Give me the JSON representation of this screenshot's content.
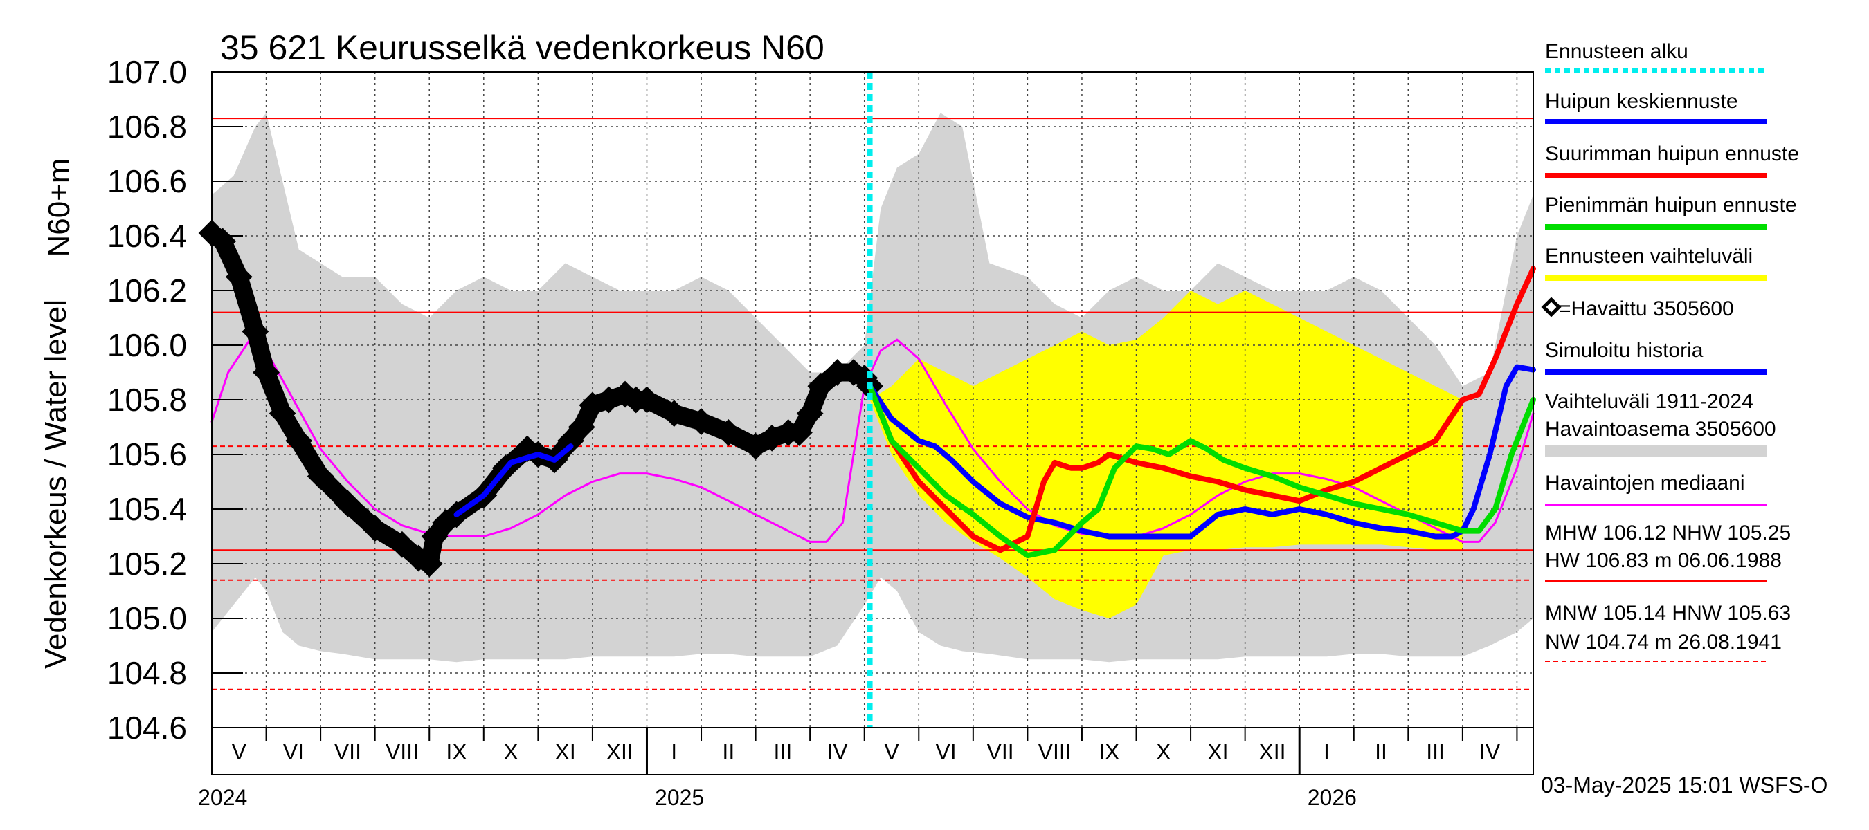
{
  "chart_data": {
    "type": "line",
    "title": "35 621 Keurusselkä vedenkorkeus N60",
    "ylabel_top": "N60+m",
    "ylabel_main": "Vedenkorkeus / Water level",
    "ylim": [
      104.6,
      107.0
    ],
    "y_ticks": [
      "107.0",
      "106.8",
      "106.6",
      "106.4",
      "106.2",
      "106.0",
      "105.8",
      "105.6",
      "105.4",
      "105.2",
      "105.0",
      "104.8",
      "104.6"
    ],
    "x_range_months": [
      0,
      24.3
    ],
    "months": [
      "V",
      "VI",
      "VII",
      "VIII",
      "IX",
      "X",
      "XI",
      "XII",
      "I",
      "II",
      "III",
      "IV",
      "V",
      "VI",
      "VII",
      "VIII",
      "IX",
      "X",
      "XI",
      "XII",
      "I",
      "II",
      "III",
      "IV"
    ],
    "years": [
      "2024",
      "2025",
      "2026"
    ],
    "forecast_start": 12.1,
    "reference_lines": [
      {
        "name": "HW",
        "value": 106.83,
        "style": "solid"
      },
      {
        "name": "MHW",
        "value": 106.12,
        "style": "solid"
      },
      {
        "name": "HNW",
        "value": 105.63,
        "style": "dashed"
      },
      {
        "name": "NHW",
        "value": 105.25,
        "style": "solid"
      },
      {
        "name": "MNW",
        "value": 105.14,
        "style": "dashed"
      },
      {
        "name": "NW",
        "value": 104.74,
        "style": "dashed"
      }
    ],
    "series": [
      {
        "name": "Vaihteluväli 1911-2024 Havaintoasema 3505600",
        "kind": "band",
        "color": "#d3d3d3",
        "x": [
          0,
          0.4,
          0.8,
          1.0,
          1.3,
          1.6,
          2.0,
          2.4,
          3.0,
          3.5,
          4.0,
          4.5,
          5.0,
          5.5,
          6.0,
          6.5,
          7.0,
          7.5,
          8.0,
          8.5,
          9.0,
          9.5,
          10.0,
          10.5,
          11.0,
          11.5,
          12.0,
          12.3,
          12.6,
          13.0,
          13.4,
          13.8,
          14.3,
          15.0,
          15.5,
          16.0,
          16.5,
          17.0,
          17.5,
          18.0,
          18.5,
          19.0,
          19.5,
          20.0,
          20.5,
          21.0,
          21.5,
          22.0,
          22.5,
          23.0,
          23.5,
          24.0,
          24.3
        ],
        "upper": [
          106.55,
          106.62,
          106.8,
          106.85,
          106.6,
          106.35,
          106.3,
          106.25,
          106.25,
          106.15,
          106.1,
          106.2,
          106.25,
          106.2,
          106.2,
          106.3,
          106.25,
          106.2,
          106.2,
          106.2,
          106.25,
          106.2,
          106.1,
          106.0,
          105.9,
          105.9,
          106.0,
          106.5,
          106.65,
          106.7,
          106.85,
          106.8,
          106.3,
          106.25,
          106.15,
          106.1,
          106.2,
          106.25,
          106.2,
          106.2,
          106.3,
          106.25,
          106.2,
          106.2,
          106.2,
          106.25,
          106.2,
          106.1,
          106.0,
          105.85,
          105.9,
          106.4,
          106.55
        ],
        "lower": [
          104.95,
          105.05,
          105.15,
          105.1,
          104.95,
          104.9,
          104.88,
          104.87,
          104.85,
          104.85,
          104.85,
          104.84,
          104.85,
          104.85,
          104.85,
          104.85,
          104.86,
          104.86,
          104.86,
          104.86,
          104.87,
          104.87,
          104.86,
          104.86,
          104.86,
          104.9,
          105.05,
          105.15,
          105.1,
          104.95,
          104.9,
          104.88,
          104.87,
          104.85,
          104.85,
          104.85,
          104.84,
          104.85,
          104.85,
          104.85,
          104.85,
          104.86,
          104.86,
          104.86,
          104.86,
          104.87,
          104.87,
          104.86,
          104.86,
          104.86,
          104.9,
          104.95,
          105.0
        ]
      },
      {
        "name": "Ennusteen vaihteluväli",
        "kind": "band",
        "color": "#ffff00",
        "x": [
          12.1,
          12.5,
          13.0,
          13.5,
          14.0,
          14.5,
          15.0,
          15.5,
          16.0,
          16.5,
          17.0,
          17.5,
          18.0,
          18.5,
          19.0,
          19.5,
          20.0,
          20.5,
          21.0,
          21.5,
          22.0,
          22.5,
          23.0
        ],
        "upper": [
          105.8,
          105.85,
          105.95,
          105.9,
          105.85,
          105.9,
          105.95,
          106.0,
          106.05,
          106.0,
          106.02,
          106.1,
          106.2,
          106.15,
          106.2,
          106.15,
          106.1,
          106.05,
          106.0,
          105.95,
          105.9,
          105.85,
          105.8
        ],
        "lower": [
          105.8,
          105.6,
          105.45,
          105.35,
          105.28,
          105.22,
          105.15,
          105.07,
          105.03,
          105.0,
          105.05,
          105.23,
          105.25,
          105.25,
          105.26,
          105.26,
          105.27,
          105.27,
          105.27,
          105.27,
          105.26,
          105.25,
          105.25
        ]
      },
      {
        "name": "Havaintojen mediaani",
        "color": "#ff00ff",
        "x": [
          0,
          0.3,
          0.7,
          1.0,
          1.5,
          2.0,
          2.5,
          3.0,
          3.5,
          4.0,
          4.5,
          5.0,
          5.5,
          6.0,
          6.5,
          7.0,
          7.5,
          8.0,
          8.5,
          9.0,
          9.5,
          10.0,
          10.5,
          11.0,
          11.3,
          11.6,
          11.8,
          12.0,
          12.3,
          12.6,
          13.0,
          13.5,
          14.0,
          14.5,
          15.0,
          15.5,
          16.0,
          16.5,
          17.0,
          17.5,
          18.0,
          18.5,
          19.0,
          19.5,
          20.0,
          20.5,
          21.0,
          21.5,
          22.0,
          22.5,
          23.0,
          23.3,
          23.6,
          24.0,
          24.3
        ],
        "values": [
          105.72,
          105.9,
          106.02,
          105.98,
          105.8,
          105.62,
          105.5,
          105.4,
          105.34,
          105.31,
          105.3,
          105.3,
          105.33,
          105.38,
          105.45,
          105.5,
          105.53,
          105.53,
          105.51,
          105.48,
          105.43,
          105.38,
          105.33,
          105.28,
          105.28,
          105.35,
          105.6,
          105.85,
          105.98,
          106.02,
          105.95,
          105.78,
          105.62,
          105.5,
          105.4,
          105.34,
          105.31,
          105.3,
          105.3,
          105.33,
          105.38,
          105.45,
          105.5,
          105.53,
          105.53,
          105.51,
          105.48,
          105.43,
          105.38,
          105.33,
          105.28,
          105.28,
          105.35,
          105.55,
          105.75
        ]
      },
      {
        "name": "Havaittu 3505600",
        "color": "#000000",
        "kind": "markers",
        "x": [
          0,
          0.2,
          0.5,
          0.8,
          1.0,
          1.3,
          1.6,
          2.0,
          2.5,
          3.0,
          3.5,
          3.8,
          4.0,
          4.1,
          4.3,
          4.5,
          5.0,
          5.4,
          5.8,
          6.0,
          6.3,
          6.6,
          6.8,
          7.0,
          7.3,
          7.6,
          7.8,
          8.0,
          8.5,
          9.0,
          9.5,
          10.0,
          10.3,
          10.6,
          10.8,
          11.0,
          11.2,
          11.5,
          11.8,
          12.0,
          12.1
        ],
        "values": [
          106.41,
          106.38,
          106.25,
          106.05,
          105.9,
          105.75,
          105.65,
          105.52,
          105.42,
          105.33,
          105.27,
          105.22,
          105.2,
          105.3,
          105.35,
          105.38,
          105.45,
          105.55,
          105.62,
          105.6,
          105.58,
          105.65,
          105.7,
          105.78,
          105.8,
          105.82,
          105.8,
          105.8,
          105.75,
          105.72,
          105.68,
          105.63,
          105.66,
          105.68,
          105.68,
          105.75,
          105.85,
          105.9,
          105.9,
          105.88,
          105.85
        ]
      },
      {
        "name": "Simuloitu historia",
        "color": "#0000ff",
        "x": [
          4.5,
          5.0,
          5.5,
          6.0,
          6.3,
          6.6
        ],
        "values": [
          105.38,
          105.45,
          105.57,
          105.6,
          105.58,
          105.63
        ]
      },
      {
        "name": "Huipun keskiennuste",
        "color": "#0000ff",
        "x": [
          12.1,
          12.5,
          13.0,
          13.3,
          13.6,
          14.0,
          14.5,
          15.0,
          15.5,
          16.0,
          16.5,
          17.0,
          17.5,
          18.0,
          18.5,
          19.0,
          19.5,
          20.0,
          20.5,
          21.0,
          21.5,
          22.0,
          22.5,
          22.8,
          23.0,
          23.2,
          23.5,
          23.8,
          24.0,
          24.3
        ],
        "values": [
          105.85,
          105.73,
          105.65,
          105.63,
          105.58,
          105.5,
          105.42,
          105.37,
          105.35,
          105.32,
          105.3,
          105.3,
          105.3,
          105.3,
          105.38,
          105.4,
          105.38,
          105.4,
          105.38,
          105.35,
          105.33,
          105.32,
          105.3,
          105.3,
          105.32,
          105.4,
          105.6,
          105.85,
          105.92,
          105.91
        ]
      },
      {
        "name": "Suurimman huipun ennuste",
        "color": "#ff0000",
        "x": [
          12.1,
          12.5,
          13.0,
          13.5,
          14.0,
          14.5,
          15.0,
          15.3,
          15.5,
          15.8,
          16.0,
          16.3,
          16.5,
          17.0,
          17.5,
          18.0,
          18.5,
          19.0,
          19.5,
          20.0,
          20.5,
          21.0,
          21.5,
          22.0,
          22.5,
          23.0,
          23.3,
          23.6,
          23.9,
          24.0,
          24.3
        ],
        "values": [
          105.85,
          105.65,
          105.5,
          105.4,
          105.3,
          105.25,
          105.3,
          105.5,
          105.57,
          105.55,
          105.55,
          105.57,
          105.6,
          105.57,
          105.55,
          105.52,
          105.5,
          105.47,
          105.45,
          105.43,
          105.47,
          105.5,
          105.55,
          105.6,
          105.65,
          105.8,
          105.82,
          105.95,
          106.1,
          106.15,
          106.28
        ]
      },
      {
        "name": "Pienimmän huipun ennuste",
        "color": "#00dd00",
        "x": [
          12.1,
          12.5,
          13.0,
          13.5,
          14.0,
          14.5,
          15.0,
          15.5,
          16.0,
          16.3,
          16.6,
          17.0,
          17.3,
          17.6,
          18.0,
          18.3,
          18.6,
          19.0,
          19.5,
          20.0,
          20.5,
          21.0,
          21.5,
          22.0,
          22.5,
          23.0,
          23.3,
          23.6,
          23.9,
          24.3
        ],
        "values": [
          105.85,
          105.65,
          105.55,
          105.45,
          105.38,
          105.3,
          105.23,
          105.25,
          105.35,
          105.4,
          105.55,
          105.63,
          105.62,
          105.6,
          105.65,
          105.62,
          105.58,
          105.55,
          105.52,
          105.48,
          105.45,
          105.42,
          105.4,
          105.38,
          105.35,
          105.32,
          105.32,
          105.4,
          105.6,
          105.8
        ]
      }
    ],
    "legend": [
      {
        "label": "Ennusteen alku",
        "color": "#00eeee",
        "style": "dotted"
      },
      {
        "label": "Huipun keskiennuste",
        "color": "#0000ff",
        "style": "line"
      },
      {
        "label": "Suurimman huipun ennuste",
        "color": "#ff0000",
        "style": "line"
      },
      {
        "label": "Pienimmän huipun ennuste",
        "color": "#00dd00",
        "style": "line"
      },
      {
        "label": "Ennusteen vaihteluväli",
        "color": "#ffff00",
        "style": "line"
      },
      {
        "label": "=Havaittu 3505600",
        "color": "#000000",
        "style": "marker"
      },
      {
        "label": "Simuloitu historia",
        "color": "#0000ff",
        "style": "line"
      },
      {
        "label": "Vaihteluväli 1911-2024",
        "color": "#d3d3d3",
        "style": "none"
      },
      {
        "label": " Havaintoasema 3505600",
        "color": "#d3d3d3",
        "style": "thick"
      },
      {
        "label": "Havaintojen mediaani",
        "color": "#ff00ff",
        "style": "line"
      },
      {
        "label": "MHW 106.12 NHW 105.25",
        "color": "#ff0000",
        "style": "none"
      },
      {
        "label": "HW 106.83 m 06.06.1988",
        "color": "#ff0000",
        "style": "thin"
      },
      {
        "label": "MNW 105.14 HNW 105.63",
        "color": "#ff0000",
        "style": "none"
      },
      {
        "label": "NW 104.74 m 26.08.1941",
        "color": "#ff0000",
        "style": "dashed"
      }
    ],
    "footer": "03-May-2025 15:01 WSFS-O"
  }
}
